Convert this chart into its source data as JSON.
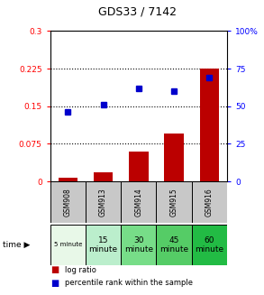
{
  "title": "GDS33 / 7142",
  "samples": [
    "GSM908",
    "GSM913",
    "GSM914",
    "GSM915",
    "GSM916"
  ],
  "log_ratio": [
    0.008,
    0.018,
    0.06,
    0.095,
    0.225
  ],
  "percentile_rank": [
    46,
    51,
    62,
    60,
    69
  ],
  "bar_color": "#bb0000",
  "dot_color": "#0000cc",
  "left_ylim": [
    0,
    0.3
  ],
  "right_ylim": [
    0,
    100
  ],
  "left_yticks": [
    0,
    0.075,
    0.15,
    0.225,
    0.3
  ],
  "left_yticklabels": [
    "0",
    "0.075",
    "0.15",
    "0.225",
    "0.3"
  ],
  "right_yticks": [
    0,
    25,
    50,
    75,
    100
  ],
  "right_yticklabels": [
    "0",
    "25",
    "50",
    "75",
    "100%"
  ],
  "hlines": [
    0.075,
    0.15,
    0.225
  ],
  "cell_colors_gsm": [
    "#c8c8c8",
    "#c8c8c8",
    "#c8c8c8",
    "#c8c8c8",
    "#c8c8c8"
  ],
  "cell_colors_time": [
    "#e8f8e8",
    "#bbeecc",
    "#77dd88",
    "#55cc66",
    "#22bb44"
  ],
  "bg_color": "#ffffff",
  "bar_width": 0.55,
  "time_labels": [
    "5 minute",
    "15\nminute",
    "30\nminute",
    "45\nminute",
    "60\nminute"
  ],
  "time_small": [
    true,
    false,
    false,
    false,
    false
  ]
}
